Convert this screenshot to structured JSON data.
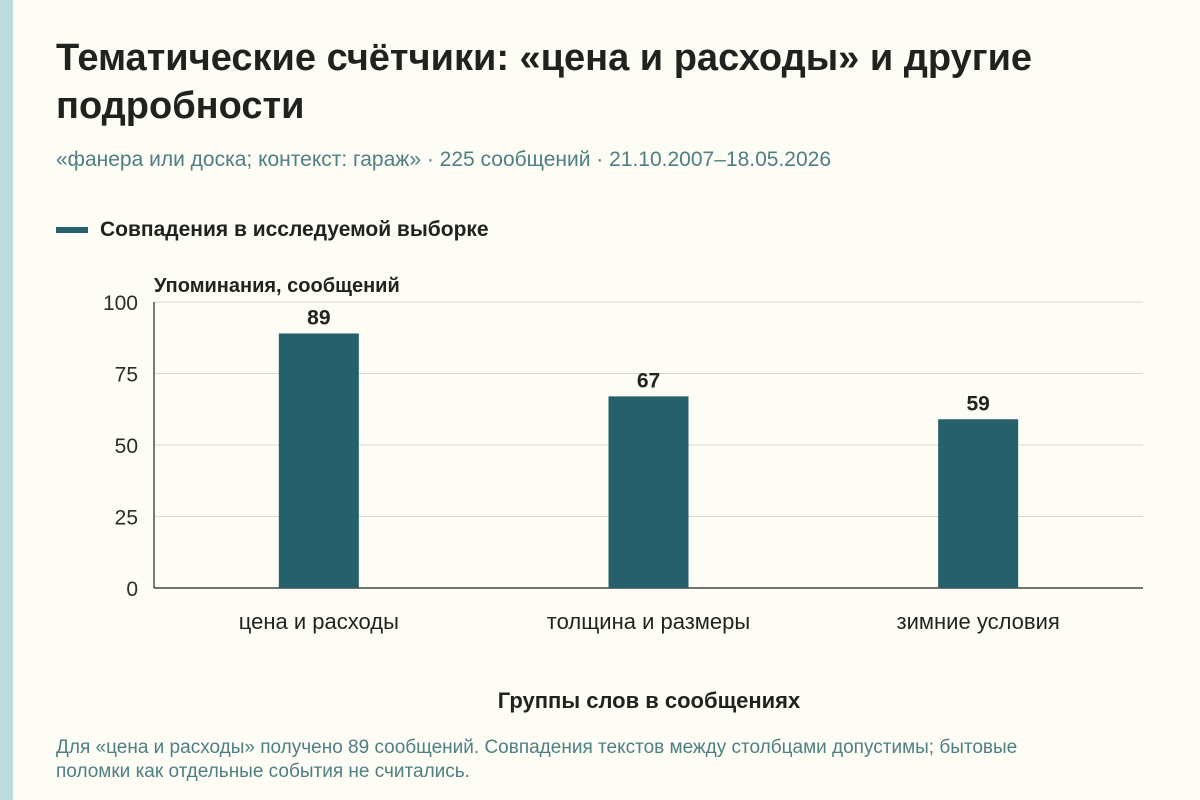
{
  "title": "Тематические счётчики: «цена и расходы» и другие подробности",
  "subtitle": "«фанера или доска; контекст: гараж» · 225 сообщений · 21.10.2007–18.05.2026",
  "caption": "Для «цена и расходы» получено 89 сообщений. Совпадения текстов между столбцами допустимы; бытовые поломки как отдельные события не считались.",
  "colors": {
    "bar": "#25606b",
    "grid": "#d9d9d2",
    "axis": "#1f2320",
    "stripe": "#bcdcdc"
  },
  "chart_data": {
    "type": "bar",
    "title": "Тематические счётчики: «цена и расходы» и другие подробности",
    "subtitle": "«фанера или доска; контекст: гараж» · 225 сообщений · 21.10.2007–18.05.2026",
    "categories": [
      "цена и расходы",
      "толщина и размеры",
      "зимние условия"
    ],
    "series": [
      {
        "name": "Совпадения в исследуемой выборке",
        "values": [
          89,
          67,
          59
        ]
      }
    ],
    "data_labels": [
      "89",
      "67",
      "59"
    ],
    "xlabel": "Группы слов в сообщениях",
    "ylabel": "Упоминания, сообщений",
    "ylim": [
      0,
      100
    ],
    "yticks": [
      0,
      25,
      50,
      75,
      100
    ],
    "ytick_labels": [
      "0",
      "25",
      "50",
      "75",
      "100"
    ],
    "grid": true,
    "legend_position": "top-left"
  }
}
